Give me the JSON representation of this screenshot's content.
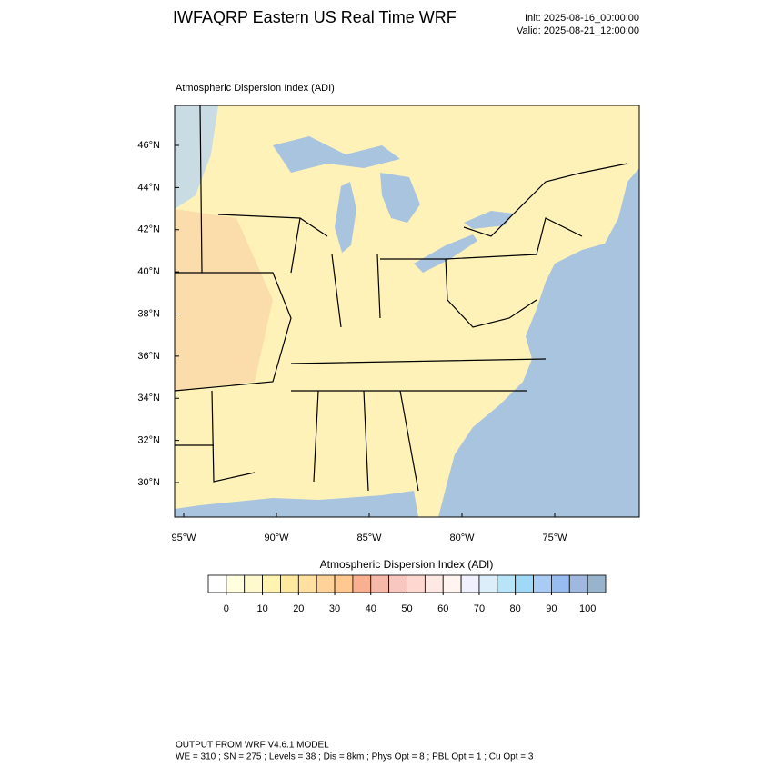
{
  "header": {
    "title": "IWFAQRP Eastern US Real Time WRF",
    "init": "Init: 2025-08-16_00:00:00",
    "valid": "Valid: 2025-08-21_12:00:00"
  },
  "map": {
    "subtitle": "Atmospheric Dispersion Index   (ADI)",
    "lat_ticks": [
      {
        "value": 46,
        "label": "46°N"
      },
      {
        "value": 44,
        "label": "44°N"
      },
      {
        "value": 42,
        "label": "42°N"
      },
      {
        "value": 40,
        "label": "40°N"
      },
      {
        "value": 38,
        "label": "38°N"
      },
      {
        "value": 36,
        "label": "36°N"
      },
      {
        "value": 34,
        "label": "34°N"
      },
      {
        "value": 32,
        "label": "32°N"
      },
      {
        "value": 30,
        "label": "30°N"
      }
    ],
    "lon_ticks": [
      {
        "value": -95,
        "label": "95°W"
      },
      {
        "value": -90,
        "label": "90°W"
      },
      {
        "value": -85,
        "label": "85°W"
      },
      {
        "value": -80,
        "label": "80°W"
      },
      {
        "value": -75,
        "label": "75°W"
      }
    ]
  },
  "colorbar": {
    "title": "Atmospheric Dispersion Index (ADI)",
    "range": [
      -5,
      105
    ],
    "ticks": [
      0,
      10,
      20,
      30,
      40,
      50,
      60,
      70,
      80,
      90,
      100
    ],
    "colors": [
      "#ffffff",
      "#ffffe0",
      "#fffacd",
      "#fff3b0",
      "#ffe9a0",
      "#ffe0a0",
      "#ffd29a",
      "#ffc890",
      "#f8b090",
      "#f6b8a8",
      "#f8c8c0",
      "#fcd8d0",
      "#fde8e4",
      "#fff4f0",
      "#f0f0ff",
      "#dceefa",
      "#b8e4f8",
      "#a0d8f8",
      "#a8ccf4",
      "#98bcf0",
      "#a0b8e0",
      "#98b4cc"
    ]
  },
  "footer": {
    "line1": "OUTPUT FROM WRF V4.6.1 MODEL",
    "line2": "WE = 310 ; SN = 275 ; Levels = 38 ; Dis = 8km ; Phys Opt = 8 ; PBL Opt = 1 ; Cu Opt = 3"
  }
}
